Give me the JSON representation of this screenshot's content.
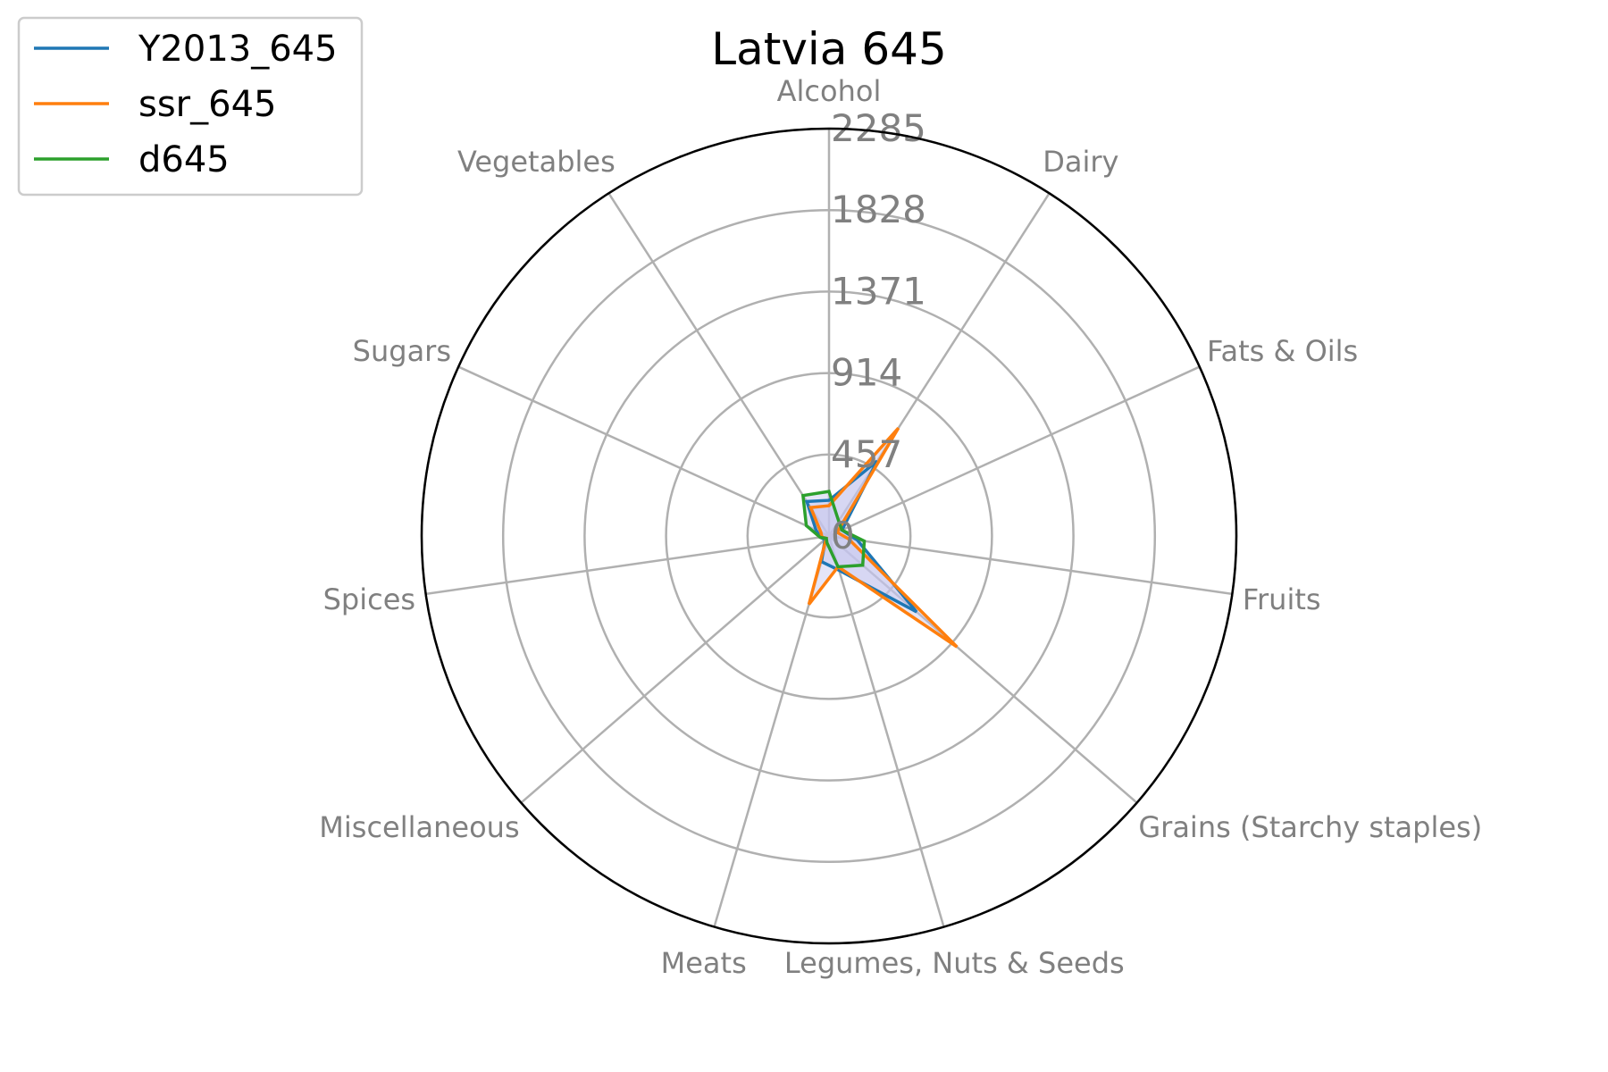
{
  "chart_data": {
    "type": "radar",
    "title": "Latvia 645",
    "categories": [
      "Alcohol",
      "Dairy",
      "Fats & Oils",
      "Fruits",
      "Grains (Starchy staples)",
      "Legumes, Nuts & Seeds",
      "Meats",
      "Miscellaneous",
      "Spices",
      "Sugars",
      "Vegetables"
    ],
    "radial_ticks": [
      "0",
      "457",
      "914",
      "1371",
      "1828",
      "2285"
    ],
    "rlim": [
      0,
      2285
    ],
    "grid": true,
    "legend_position": "top-left",
    "series": [
      {
        "name": "Y2013_645",
        "color": "#1f77b4",
        "values": [
          200,
          500,
          80,
          160,
          650,
          200,
          150,
          30,
          50,
          80,
          230
        ]
      },
      {
        "name": "ssr_645",
        "color": "#ff7f0e",
        "values": [
          170,
          720,
          50,
          110,
          950,
          180,
          400,
          20,
          40,
          50,
          190
        ]
      },
      {
        "name": "d645",
        "color": "#2ca02c",
        "values": [
          250,
          100,
          80,
          200,
          250,
          180,
          40,
          20,
          50,
          140,
          270
        ]
      }
    ],
    "fill_color": "#c6c6ee"
  }
}
